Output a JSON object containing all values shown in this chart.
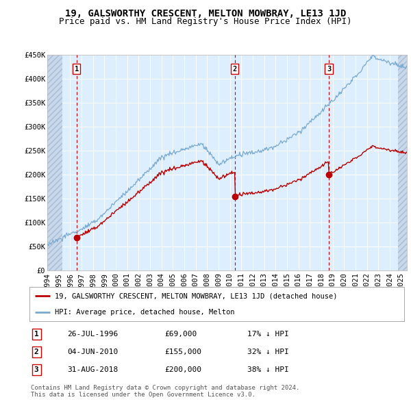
{
  "title": "19, GALSWORTHY CRESCENT, MELTON MOWBRAY, LE13 1JD",
  "subtitle": "Price paid vs. HM Land Registry's House Price Index (HPI)",
  "ylim": [
    0,
    450000
  ],
  "yticks": [
    0,
    50000,
    100000,
    150000,
    200000,
    250000,
    300000,
    350000,
    400000,
    450000
  ],
  "ytick_labels": [
    "£0",
    "£50K",
    "£100K",
    "£150K",
    "£200K",
    "£250K",
    "£300K",
    "£350K",
    "£400K",
    "£450K"
  ],
  "xlim_start": 1994.0,
  "xlim_end": 2025.5,
  "hatch_left_end": 1995.3,
  "hatch_right_start": 2024.7,
  "plot_bg_color": "#ddeeff",
  "hatch_color": "#c8d8ec",
  "grid_color": "#ffffff",
  "sale_dates": [
    1996.56,
    2010.42,
    2018.66
  ],
  "sale_prices": [
    69000,
    155000,
    200000
  ],
  "sale_labels": [
    "1",
    "2",
    "3"
  ],
  "sale_date_strs": [
    "26-JUL-1996",
    "04-JUN-2010",
    "31-AUG-2018"
  ],
  "sale_price_strs": [
    "£69,000",
    "£155,000",
    "£200,000"
  ],
  "sale_hpi_strs": [
    "17% ↓ HPI",
    "32% ↓ HPI",
    "38% ↓ HPI"
  ],
  "vline_color": "#cc0000",
  "hpi_line_color": "#7aaad0",
  "price_line_color": "#bb0000",
  "legend_label_price": "19, GALSWORTHY CRESCENT, MELTON MOWBRAY, LE13 1JD (detached house)",
  "legend_label_hpi": "HPI: Average price, detached house, Melton",
  "footer_text": "Contains HM Land Registry data © Crown copyright and database right 2024.\nThis data is licensed under the Open Government Licence v3.0.",
  "title_fontsize": 10,
  "subtitle_fontsize": 9,
  "tick_fontsize": 7.5,
  "legend_fontsize": 7.5,
  "table_fontsize": 8,
  "footer_fontsize": 6.5
}
